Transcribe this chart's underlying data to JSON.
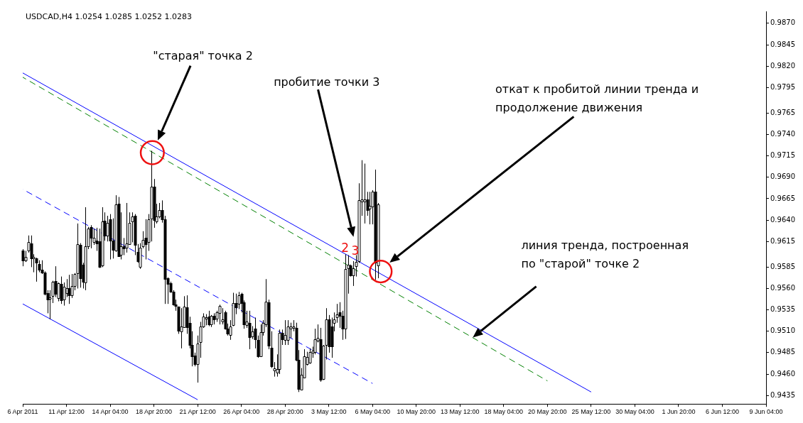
{
  "chart_data": {
    "type": "candlestick",
    "title": "USDCAD,H4 1.0254 1.0285 1.0252 1.0283",
    "categories": [
      "6 Apr 2011",
      null,
      null,
      null,
      null,
      null,
      null,
      null,
      null,
      null,
      null,
      null,
      null,
      null,
      null,
      null,
      "11 Apr 12:00",
      null,
      null,
      null,
      null,
      null,
      null,
      null,
      null,
      null,
      null,
      null,
      null,
      null,
      null,
      null,
      "14 Apr 04:00",
      null,
      null,
      null,
      null,
      null,
      null,
      null,
      null,
      null,
      null,
      null,
      null,
      null,
      null,
      null,
      "18 Apr 20:00",
      null,
      null,
      null,
      null,
      null,
      null,
      null,
      null,
      null,
      null,
      null,
      null,
      null,
      null,
      null,
      "21 Apr 12:00",
      null,
      null,
      null,
      null,
      null,
      null,
      null,
      null,
      null,
      null,
      null,
      null,
      null,
      null,
      null,
      "26 Apr 04:00",
      null,
      null,
      null,
      null,
      null,
      null,
      null,
      null,
      null,
      null,
      null,
      null,
      null,
      null,
      null,
      "28 Apr 20:00",
      null,
      null,
      null,
      null,
      null,
      null,
      null,
      null,
      null,
      null,
      null,
      null,
      null,
      null,
      null,
      "3 May 12:00",
      null,
      null,
      null,
      null,
      null,
      null,
      null,
      null,
      null,
      null,
      null,
      null,
      null,
      null,
      null,
      "6 May 04:00",
      null,
      null,
      null,
      null,
      null,
      null,
      null,
      null,
      null,
      null,
      null,
      null,
      null,
      null,
      null,
      "10 May 20:00",
      null,
      null,
      null,
      null,
      null,
      null,
      null,
      null,
      null,
      null,
      null,
      null,
      null,
      null,
      null,
      "13 May 12:00",
      null,
      null,
      null,
      null,
      null,
      null,
      null,
      null,
      null,
      null,
      null,
      null,
      null,
      null,
      null,
      "18 May 04:00",
      null,
      null,
      null,
      null,
      null,
      null,
      null,
      null,
      null,
      null,
      null,
      null,
      null,
      null,
      null,
      "20 May 20:00",
      null,
      null,
      null,
      null,
      null,
      null,
      null,
      null,
      null,
      null,
      null,
      null,
      null,
      null,
      null,
      "25 May 12:00",
      null,
      null,
      null,
      null,
      null,
      null,
      null,
      null,
      null,
      null,
      null,
      null,
      null,
      null,
      null,
      "30 May 04:00",
      null,
      null,
      null,
      null,
      null,
      null,
      null,
      null,
      null,
      null,
      null,
      null,
      null,
      null,
      null,
      "1 Jun 20:00",
      null,
      null,
      null,
      null,
      null,
      null,
      null,
      null,
      null,
      null,
      null,
      null,
      null,
      null,
      null,
      "6 Jun 12:00",
      null,
      null,
      null,
      null,
      null,
      null,
      null,
      null,
      null,
      null,
      null,
      null,
      null,
      null,
      null,
      "9 Jun 04:00"
    ],
    "ohlc": [
      [
        0.9604,
        0.9606,
        0.9586,
        0.9593
      ],
      [
        0.9593,
        0.9604,
        0.9591,
        0.9597
      ],
      [
        0.9604,
        0.9622,
        0.9602,
        0.9614
      ],
      [
        0.9613,
        0.9622,
        0.9585,
        0.9595
      ],
      [
        0.9595,
        0.96,
        0.9579,
        0.9597
      ],
      [
        0.9595,
        0.9596,
        0.9568,
        0.959
      ],
      [
        0.9589,
        0.9593,
        0.9579,
        0.9582
      ],
      [
        0.9582,
        0.9593,
        0.9577,
        0.9579
      ],
      [
        0.9579,
        0.958,
        0.9552,
        0.9554
      ],
      [
        0.9555,
        0.9558,
        0.9531,
        0.9547
      ],
      [
        0.9548,
        0.9558,
        0.9524,
        0.955
      ],
      [
        0.9551,
        0.9569,
        0.9543,
        0.9568
      ],
      [
        0.9569,
        0.9586,
        0.955,
        0.9554
      ],
      [
        0.9549,
        0.9567,
        0.9545,
        0.9566
      ],
      [
        0.9565,
        0.9574,
        0.9542,
        0.9546
      ],
      [
        0.9547,
        0.9567,
        0.954,
        0.9562
      ],
      [
        0.9555,
        0.9571,
        0.955,
        0.956
      ],
      [
        0.956,
        0.9576,
        0.9542,
        0.9552
      ],
      [
        0.9552,
        0.9577,
        0.9549,
        0.9563
      ],
      [
        0.9563,
        0.9578,
        0.9558,
        0.9577
      ],
      [
        0.9578,
        0.9636,
        0.956,
        0.9612
      ],
      [
        0.9611,
        0.9613,
        0.9561,
        0.9572
      ],
      [
        0.9588,
        0.959,
        0.956,
        0.9568
      ],
      [
        0.9567,
        0.9655,
        0.9558,
        0.9609
      ],
      [
        0.9609,
        0.9632,
        0.9606,
        0.963
      ],
      [
        0.9632,
        0.9634,
        0.9607,
        0.9619
      ],
      [
        0.9614,
        0.963,
        0.9611,
        0.9619
      ],
      [
        0.9616,
        0.9631,
        0.9604,
        0.9613
      ],
      [
        0.9615,
        0.963,
        0.9584,
        0.9585
      ],
      [
        0.9587,
        0.9655,
        0.9585,
        0.9638
      ],
      [
        0.9639,
        0.9649,
        0.9616,
        0.9622
      ],
      [
        0.9622,
        0.9645,
        0.9615,
        0.9637
      ],
      [
        0.9641,
        0.9647,
        0.9594,
        0.9616
      ],
      [
        0.9616,
        0.9642,
        0.9595,
        0.9605
      ],
      [
        0.9604,
        0.9669,
        0.9603,
        0.9658
      ],
      [
        0.9659,
        0.9667,
        0.9598,
        0.9598
      ],
      [
        0.9599,
        0.9649,
        0.9594,
        0.9609
      ],
      [
        0.9609,
        0.9619,
        0.9599,
        0.9607
      ],
      [
        0.9608,
        0.966,
        0.9602,
        0.9613
      ],
      [
        0.9612,
        0.9649,
        0.9611,
        0.9637
      ],
      [
        0.9638,
        0.9649,
        0.9614,
        0.9644
      ],
      [
        0.9645,
        0.9647,
        0.9599,
        0.9611
      ],
      [
        0.9603,
        0.9612,
        0.959,
        0.9592
      ],
      [
        0.9585,
        0.9613,
        0.9583,
        0.9608
      ],
      [
        0.9609,
        0.9627,
        0.9607,
        0.9617
      ],
      [
        0.9619,
        0.9641,
        0.9594,
        0.9612
      ],
      [
        0.9614,
        0.9647,
        0.9604,
        0.9641
      ],
      [
        0.9642,
        0.9721,
        0.9615,
        0.9679
      ],
      [
        0.9679,
        0.9688,
        0.9631,
        0.964
      ],
      [
        0.9638,
        0.9659,
        0.9636,
        0.9644
      ],
      [
        0.9644,
        0.966,
        0.9642,
        0.9652
      ],
      [
        0.9652,
        0.9663,
        0.9637,
        0.9641
      ],
      [
        0.9641,
        0.9645,
        0.9542,
        0.9571
      ],
      [
        0.9572,
        0.9573,
        0.9542,
        0.9565
      ],
      [
        0.9566,
        0.9568,
        0.9555,
        0.9556
      ],
      [
        0.9556,
        0.9558,
        0.954,
        0.9541
      ],
      [
        0.9541,
        0.9547,
        0.9534,
        0.954
      ],
      [
        0.9539,
        0.9539,
        0.9507,
        0.9511
      ],
      [
        0.951,
        0.9537,
        0.949,
        0.9516
      ],
      [
        0.9515,
        0.9551,
        0.9514,
        0.9539
      ],
      [
        0.9538,
        0.9552,
        0.9507,
        0.9515
      ],
      [
        0.952,
        0.9527,
        0.949,
        0.9494
      ],
      [
        0.9494,
        0.951,
        0.9469,
        0.9481
      ],
      [
        0.9482,
        0.9485,
        0.9469,
        0.9472
      ],
      [
        0.9472,
        0.9505,
        0.945,
        0.9496
      ],
      [
        0.9497,
        0.9521,
        0.9479,
        0.9516
      ],
      [
        0.9516,
        0.9531,
        0.9514,
        0.9527
      ],
      [
        0.9525,
        0.953,
        0.9517,
        0.9526
      ],
      [
        0.9527,
        0.9534,
        0.9516,
        0.9518
      ],
      [
        0.9518,
        0.9529,
        0.9515,
        0.9528
      ],
      [
        0.9528,
        0.9531,
        0.9518,
        0.9524
      ],
      [
        0.9525,
        0.9534,
        0.9521,
        0.9532
      ],
      [
        0.9531,
        0.9541,
        0.9518,
        0.954
      ],
      [
        0.9521,
        0.9537,
        0.9518,
        0.9524
      ],
      [
        0.9532,
        0.9534,
        0.9512,
        0.9513
      ],
      [
        0.9513,
        0.9519,
        0.9505,
        0.9507
      ],
      [
        0.9506,
        0.9523,
        0.95,
        0.9516
      ],
      [
        0.9517,
        0.9555,
        0.9516,
        0.9543
      ],
      [
        0.9543,
        0.9554,
        0.953,
        0.9538
      ],
      [
        0.9542,
        0.9556,
        0.9536,
        0.9552
      ],
      [
        0.9554,
        0.9555,
        0.9532,
        0.9543
      ],
      [
        0.9544,
        0.9546,
        0.9513,
        0.9518
      ],
      [
        0.9517,
        0.9534,
        0.9514,
        0.9521
      ],
      [
        0.952,
        0.9534,
        0.9489,
        0.9503
      ],
      [
        0.9504,
        0.9516,
        0.9501,
        0.951
      ],
      [
        0.9513,
        0.9526,
        0.949,
        0.9501
      ],
      [
        0.95,
        0.9505,
        0.9479,
        0.9481
      ],
      [
        0.9481,
        0.9518,
        0.948,
        0.9509
      ],
      [
        0.9509,
        0.9523,
        0.9505,
        0.952
      ],
      [
        0.9518,
        0.9571,
        0.9515,
        0.9545
      ],
      [
        0.9544,
        0.9547,
        0.9489,
        0.9493
      ],
      [
        0.9491,
        0.951,
        0.9467,
        0.9469
      ],
      [
        0.9464,
        0.9474,
        0.9457,
        0.9467
      ],
      [
        0.9462,
        0.9483,
        0.9457,
        0.9466
      ],
      [
        0.9466,
        0.9512,
        0.946,
        0.9508
      ],
      [
        0.9508,
        0.9512,
        0.9494,
        0.9501
      ],
      [
        0.95,
        0.9523,
        0.9494,
        0.9506
      ],
      [
        0.95,
        0.9523,
        0.9494,
        0.9516
      ],
      [
        0.9513,
        0.952,
        0.9502,
        0.9516
      ],
      [
        0.9514,
        0.9523,
        0.951,
        0.9516
      ],
      [
        0.9514,
        0.952,
        0.9475,
        0.9477
      ],
      [
        0.9477,
        0.9488,
        0.9439,
        0.9443
      ],
      [
        0.9442,
        0.9467,
        0.9441,
        0.9459
      ],
      [
        0.9456,
        0.9489,
        0.9455,
        0.9481
      ],
      [
        0.9472,
        0.9486,
        0.947,
        0.948
      ],
      [
        0.9473,
        0.949,
        0.9472,
        0.9486
      ],
      [
        0.9485,
        0.9492,
        0.9479,
        0.9487
      ],
      [
        0.9486,
        0.9513,
        0.9483,
        0.9501
      ],
      [
        0.9499,
        0.9518,
        0.9497,
        0.9502
      ],
      [
        0.9501,
        0.9514,
        0.9451,
        0.9453
      ],
      [
        0.9454,
        0.9494,
        0.9453,
        0.9493
      ],
      [
        0.9494,
        0.9537,
        0.9477,
        0.9524
      ],
      [
        0.9524,
        0.9529,
        0.9485,
        0.9492
      ],
      [
        0.9516,
        0.9526,
        0.9479,
        0.9492
      ],
      [
        0.952,
        0.9532,
        0.951,
        0.9524
      ],
      [
        0.9526,
        0.9542,
        0.952,
        0.953
      ],
      [
        0.9532,
        0.9544,
        0.9514,
        0.9528
      ],
      [
        0.9528,
        0.9534,
        0.95,
        0.9513
      ],
      [
        0.9513,
        0.96,
        0.9501,
        0.9583
      ],
      [
        0.9584,
        0.9599,
        0.9554,
        0.9588
      ],
      [
        0.9587,
        0.9588,
        0.9574,
        0.9575
      ],
      [
        0.9575,
        0.9592,
        0.9563,
        0.9584
      ],
      [
        0.9586,
        0.9599,
        0.9574,
        0.9591
      ],
      [
        0.9592,
        0.9683,
        0.959,
        0.9663
      ],
      [
        0.9662,
        0.971,
        0.9645,
        0.9664
      ],
      [
        0.9662,
        0.9706,
        0.9636,
        0.9664
      ],
      [
        0.9664,
        0.9673,
        0.9645,
        0.9652
      ],
      [
        0.9653,
        0.9673,
        0.9635,
        0.9657
      ],
      [
        0.9656,
        0.9675,
        0.9635,
        0.9673
      ],
      [
        0.9673,
        0.9699,
        0.957,
        0.959
      ],
      [
        0.9587,
        0.966,
        0.9572,
        0.9658
      ],
      null,
      null,
      null,
      null,
      null,
      null,
      null,
      null,
      null,
      null,
      null,
      null,
      null,
      null,
      null,
      null,
      null,
      null,
      null,
      null,
      null,
      null,
      null,
      null,
      null,
      null,
      null,
      null,
      null,
      null,
      null,
      null,
      null,
      null,
      null,
      null,
      null,
      null,
      null,
      null,
      null,
      null,
      null,
      null,
      null,
      null,
      null,
      null,
      null,
      null,
      null,
      null,
      null,
      null,
      null,
      null,
      null,
      null,
      null,
      null,
      null,
      null,
      null,
      null,
      null,
      null,
      null,
      null,
      null,
      null,
      null,
      null,
      null,
      null,
      null,
      null,
      null,
      null,
      null,
      null,
      null,
      null,
      null,
      null,
      null,
      null,
      null,
      null,
      null,
      null,
      null,
      null,
      null,
      null,
      null,
      null,
      null,
      null,
      null,
      null,
      null,
      null,
      null,
      null,
      null,
      null,
      null,
      null,
      null,
      null,
      null,
      null,
      null,
      null,
      null,
      null,
      null,
      null,
      null,
      null,
      null,
      null,
      null,
      null,
      null,
      null,
      null,
      null,
      null,
      null,
      null,
      null,
      null,
      null,
      null,
      null,
      null,
      null,
      null,
      null,
      null,
      null
    ],
    "series": [
      {
        "type": "line",
        "color": "#0000ff",
        "x": [
          "6 Apr 2011",
          "25 May 12:00"
        ],
        "values": [
          0.9812,
          0.9439
        ]
      },
      {
        "type": "line",
        "color": "#008000",
        "line_style": "dashed",
        "x": [
          "6 Apr 2011",
          "20 May 20:00"
        ],
        "values": [
          0.9807,
          0.9452
        ]
      },
      {
        "type": "line",
        "color": "#0000ff",
        "line_style": "dashed",
        "x": [
          "6 Apr 2011",
          "6 May 04:00"
        ],
        "values": [
          0.9676,
          0.9449
        ]
      },
      {
        "type": "line",
        "color": "#0000ff",
        "x": [
          "6 Apr 2011",
          "21 Apr 12:00"
        ],
        "values": [
          0.9542,
          0.943
        ]
      }
    ],
    "ylim": [
      0.9425,
      0.9884
    ],
    "yticks": [
      {
        "value": 0.987,
        "label": "0.9870"
      },
      {
        "value": 0.9845,
        "label": "0.9845"
      },
      {
        "value": 0.982,
        "label": "0.9820"
      },
      {
        "value": 0.9795,
        "label": "0.9795"
      },
      {
        "value": 0.9765,
        "label": "0.9765"
      },
      {
        "value": 0.974,
        "label": "0.9740"
      },
      {
        "value": 0.9715,
        "label": "0.9715"
      },
      {
        "value": 0.969,
        "label": "0.9690"
      },
      {
        "value": 0.9665,
        "label": "0.9665"
      },
      {
        "value": 0.964,
        "label": "0.9640"
      },
      {
        "value": 0.9615,
        "label": "0.9615"
      },
      {
        "value": 0.9585,
        "label": "0.9585"
      },
      {
        "value": 0.956,
        "label": "0.9560"
      },
      {
        "value": 0.9535,
        "label": "0.9535"
      },
      {
        "value": 0.951,
        "label": "0.9510"
      },
      {
        "value": 0.9485,
        "label": "0.9485"
      },
      {
        "value": 0.946,
        "label": "0.9460"
      },
      {
        "value": 0.9435,
        "label": "0.9435"
      }
    ],
    "annotations": [
      "\"старая\" точка 2",
      "пробитие точки 3",
      "откат к пробитой линии тренда и\nпродолжение движения",
      "линия тренда, построенная\nпо \"старой\" точке 2",
      "2",
      "3"
    ]
  }
}
